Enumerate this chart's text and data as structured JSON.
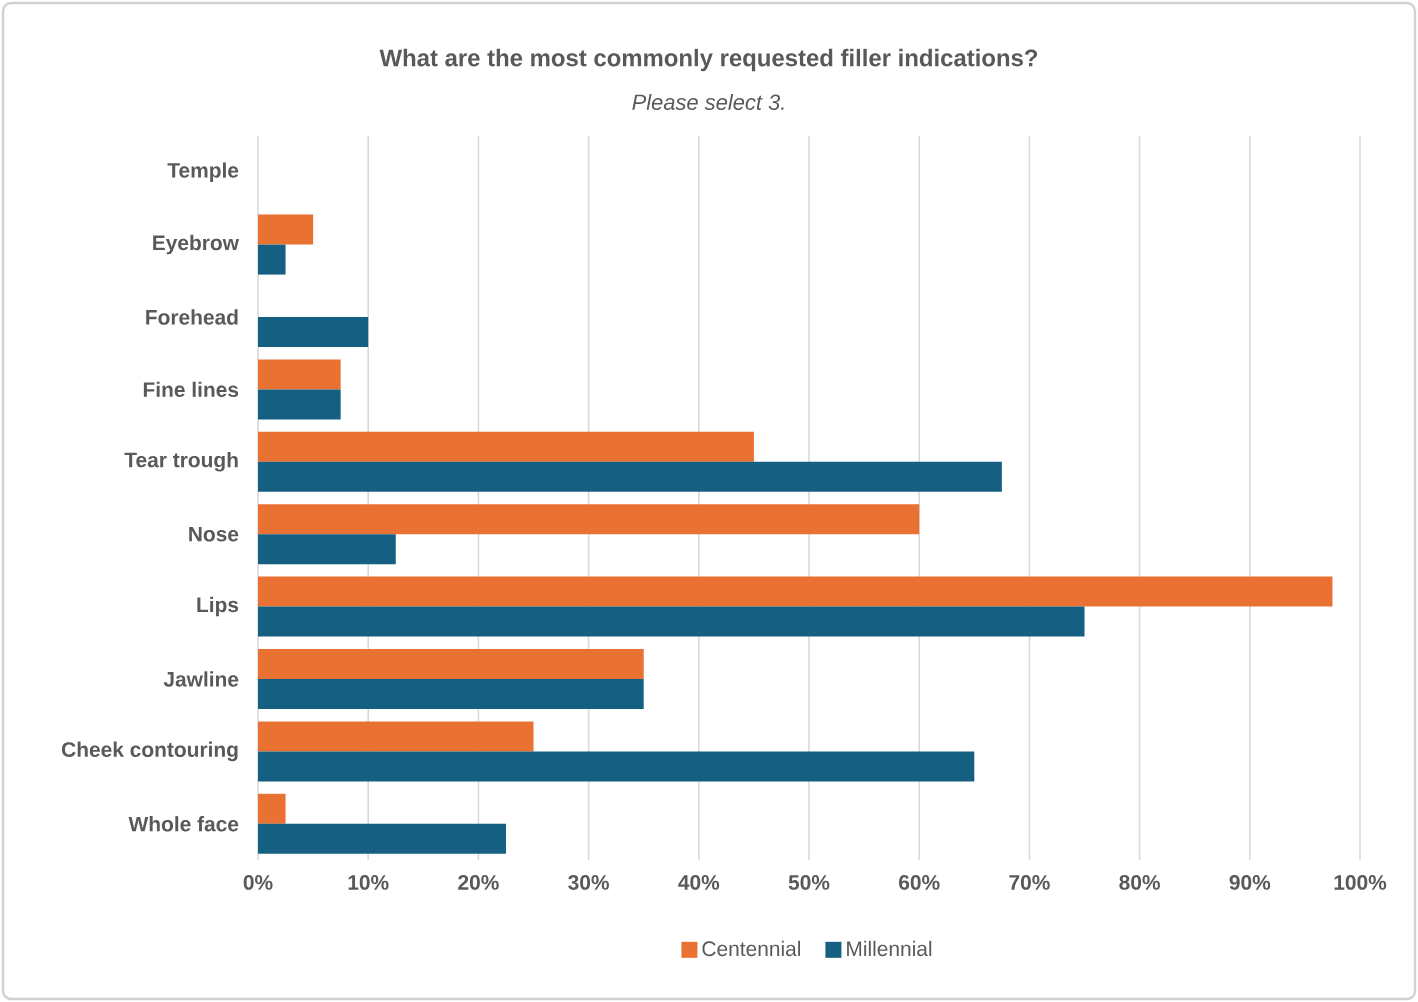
{
  "chart_data": {
    "type": "bar",
    "orientation": "horizontal",
    "title": "What are the most commonly requested filler indications?",
    "subtitle": "Please select 3.",
    "categories": [
      "Temple",
      "Eyebrow",
      "Forehead",
      "Fine lines",
      "Tear trough",
      "Nose",
      "Lips",
      "Jawline",
      "Cheek contouring",
      "Whole face"
    ],
    "series": [
      {
        "name": "Centennial",
        "color": "#e97132",
        "values": [
          0,
          5,
          0,
          7.5,
          45,
          60,
          97.5,
          35,
          25,
          2.5
        ]
      },
      {
        "name": "Millennial",
        "color": "#156082",
        "values": [
          0,
          2.5,
          10,
          7.5,
          67.5,
          12.5,
          75,
          35,
          65,
          22.5
        ]
      }
    ],
    "xlim": [
      0,
      100
    ],
    "xticks": [
      {
        "value": 0,
        "label": "0%"
      },
      {
        "value": 10,
        "label": "10%"
      },
      {
        "value": 20,
        "label": "20%"
      },
      {
        "value": 30,
        "label": "30%"
      },
      {
        "value": 40,
        "label": "40%"
      },
      {
        "value": 50,
        "label": "50%"
      },
      {
        "value": 60,
        "label": "60%"
      },
      {
        "value": 70,
        "label": "70%"
      },
      {
        "value": 80,
        "label": "80%"
      },
      {
        "value": 90,
        "label": "90%"
      },
      {
        "value": 100,
        "label": "100%"
      }
    ],
    "grid": "x",
    "legend": "bottom"
  }
}
